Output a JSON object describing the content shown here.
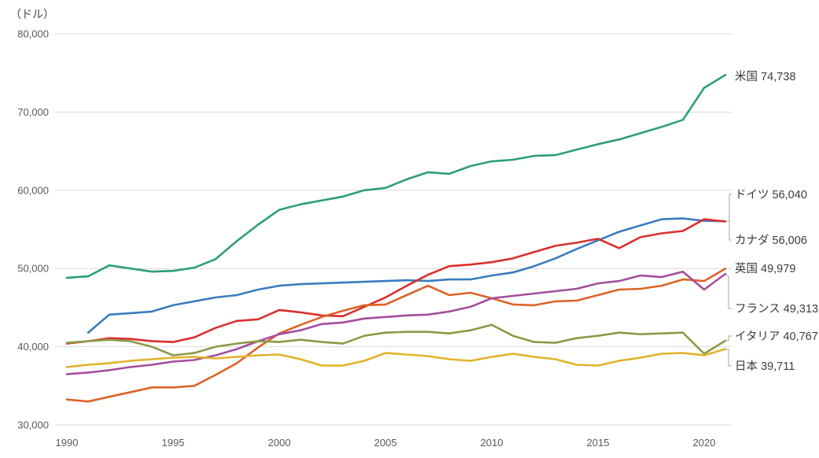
{
  "chart_data": {
    "type": "line",
    "unit_label": "（ドル）",
    "x": [
      1990,
      1991,
      1992,
      1993,
      1994,
      1995,
      1996,
      1997,
      1998,
      1999,
      2000,
      2001,
      2002,
      2003,
      2004,
      2005,
      2006,
      2007,
      2008,
      2009,
      2010,
      2011,
      2012,
      2013,
      2014,
      2015,
      2016,
      2017,
      2018,
      2019,
      2020,
      2021
    ],
    "x_ticks": [
      1990,
      1995,
      2000,
      2005,
      2010,
      2015,
      2020
    ],
    "y_ticks": [
      30000,
      40000,
      50000,
      60000,
      70000,
      80000
    ],
    "ylim": [
      30000,
      80000
    ],
    "grid": "horizontal",
    "legend_position": "right-end-labels",
    "series": [
      {
        "key": "usa",
        "name": "米国",
        "label": "米国 74,738",
        "final_value": 74738,
        "color": "#2F9E77",
        "values": [
          48800,
          49000,
          50400,
          50000,
          49600,
          49700,
          50100,
          51200,
          53500,
          55600,
          57500,
          58200,
          58700,
          59200,
          60000,
          60300,
          61400,
          62300,
          62100,
          63100,
          63700,
          63900,
          64400,
          64500,
          65200,
          65900,
          66500,
          67300,
          68100,
          69000,
          73100,
          74738
        ]
      },
      {
        "key": "germany",
        "name": "ドイツ",
        "label": "ドイツ 56,040",
        "final_value": 56040,
        "color": "#3A7CBF",
        "values": [
          null,
          41800,
          44100,
          44300,
          44500,
          45300,
          45800,
          46300,
          46600,
          47300,
          47800,
          48000,
          48100,
          48200,
          48300,
          48400,
          48500,
          48400,
          48600,
          48600,
          49100,
          49500,
          50300,
          51300,
          52500,
          53600,
          54700,
          55500,
          56300,
          56400,
          56100,
          56040
        ]
      },
      {
        "key": "canada",
        "name": "カナダ",
        "label": "カナダ 56,006",
        "final_value": 56006,
        "color": "#DB2E2E",
        "values": [
          40400,
          40700,
          41100,
          41000,
          40700,
          40600,
          41200,
          42400,
          43300,
          43500,
          44700,
          44400,
          44000,
          43900,
          45100,
          46300,
          47800,
          49200,
          50300,
          50500,
          50800,
          51300,
          52100,
          52900,
          53300,
          53800,
          52600,
          54000,
          54500,
          54800,
          56300,
          56006
        ]
      },
      {
        "key": "uk",
        "name": "英国",
        "label": "英国 49,979",
        "final_value": 49979,
        "color": "#DC6327",
        "values": [
          33250,
          33000,
          33600,
          34200,
          34800,
          34800,
          35000,
          36400,
          37900,
          39900,
          41700,
          42800,
          43800,
          44600,
          45300,
          45400,
          46600,
          47800,
          46600,
          46900,
          46200,
          45400,
          45300,
          45800,
          45900,
          46600,
          47300,
          47400,
          47800,
          48600,
          48400,
          49979
        ]
      },
      {
        "key": "france",
        "name": "フランス",
        "label": "フランス 49,313",
        "final_value": 49313,
        "color": "#A34E9C",
        "values": [
          36500,
          36700,
          37000,
          37400,
          37700,
          38100,
          38300,
          38900,
          39700,
          40700,
          41600,
          42100,
          42900,
          43100,
          43600,
          43800,
          44000,
          44100,
          44500,
          45100,
          46200,
          46500,
          46800,
          47100,
          47400,
          48100,
          48400,
          49100,
          48900,
          49600,
          47300,
          49313
        ]
      },
      {
        "key": "italy",
        "name": "イタリア",
        "label": "イタリア 40,767",
        "final_value": 40767,
        "color": "#8C9A46",
        "values": [
          40500,
          40700,
          40900,
          40700,
          40000,
          38900,
          39200,
          40000,
          40400,
          40700,
          40600,
          40900,
          40600,
          40400,
          41400,
          41800,
          41900,
          41900,
          41700,
          42100,
          42800,
          41400,
          40600,
          40500,
          41100,
          41400,
          41800,
          41600,
          41700,
          41800,
          39100,
          40767
        ]
      },
      {
        "key": "japan",
        "name": "日本",
        "label": "日本 39,711",
        "final_value": 39711,
        "color": "#E3B229",
        "values": [
          37400,
          37700,
          37900,
          38200,
          38400,
          38600,
          38700,
          38500,
          38700,
          38900,
          39000,
          38400,
          37600,
          37600,
          38200,
          39200,
          39000,
          38800,
          38400,
          38200,
          38700,
          39100,
          38700,
          38400,
          37700,
          37600,
          38200,
          38600,
          39100,
          39200,
          38900,
          39711
        ]
      }
    ]
  }
}
